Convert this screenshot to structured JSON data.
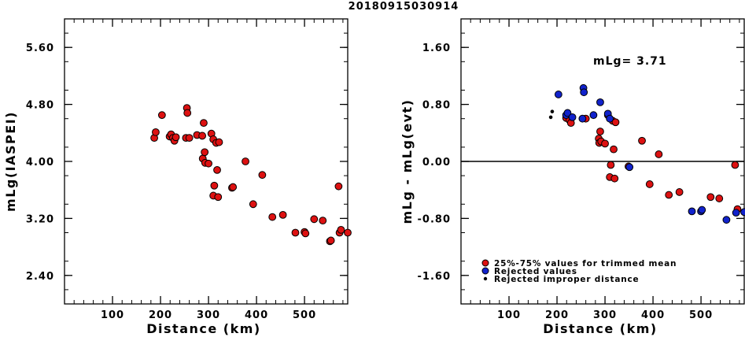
{
  "figure_title": "20180915030914",
  "colors": {
    "trimmed": "#dd1111",
    "rejected": "#1122cc",
    "improper": "#000000"
  },
  "chart_data": [
    {
      "type": "scatter",
      "title": "",
      "xlabel": "Distance (km)",
      "ylabel": "mLg(IASPEI)",
      "xlim": [
        0,
        590
      ],
      "ylim": [
        2.0,
        6.0
      ],
      "xticks": [
        100,
        200,
        300,
        400,
        500
      ],
      "yticks": [
        5.6,
        4.8,
        4.0,
        3.2,
        2.4
      ],
      "ytick_labels": [
        "5.60",
        "4.80",
        "4.00",
        "3.20",
        "2.40"
      ],
      "series": [
        {
          "category": "trimmed",
          "points": [
            [
              187,
              4.33
            ],
            [
              190,
              4.41
            ],
            [
              203,
              4.65
            ],
            [
              219,
              4.35
            ],
            [
              222,
              4.38
            ],
            [
              226,
              4.33
            ],
            [
              229,
              4.29
            ],
            [
              232,
              4.34
            ],
            [
              253,
              4.33
            ],
            [
              255,
              4.75
            ],
            [
              256,
              4.68
            ],
            [
              260,
              4.33
            ],
            [
              276,
              4.37
            ],
            [
              287,
              4.36
            ],
            [
              288,
              4.04
            ],
            [
              290,
              4.54
            ],
            [
              292,
              4.13
            ],
            [
              293,
              3.98
            ],
            [
              300,
              3.97
            ],
            [
              306,
              4.39
            ],
            [
              310,
              3.52
            ],
            [
              310,
              4.31
            ],
            [
              312,
              3.66
            ],
            [
              316,
              4.26
            ],
            [
              318,
              3.88
            ],
            [
              320,
              3.5
            ],
            [
              322,
              4.27
            ],
            [
              349,
              3.63
            ],
            [
              351,
              3.64
            ],
            [
              377,
              4.0
            ],
            [
              393,
              3.4
            ],
            [
              412,
              3.81
            ],
            [
              433,
              3.22
            ],
            [
              455,
              3.25
            ],
            [
              481,
              3.0
            ],
            [
              500,
              3.01
            ],
            [
              502,
              2.99
            ],
            [
              520,
              3.19
            ],
            [
              538,
              3.17
            ],
            [
              553,
              2.88
            ],
            [
              555,
              2.89
            ],
            [
              571,
              3.65
            ],
            [
              573,
              3.0
            ],
            [
              576,
              3.04
            ],
            [
              590,
              3.0
            ]
          ]
        }
      ]
    },
    {
      "type": "scatter",
      "title": "",
      "xlabel": "Distance (km)",
      "ylabel": "mLg - mLg(evt)",
      "annotation": "mLg= 3.71",
      "reference_line_y": 0.0,
      "xlim": [
        0,
        590
      ],
      "ylim": [
        -2.0,
        2.0
      ],
      "xticks": [
        100,
        200,
        300,
        400,
        500
      ],
      "yticks": [
        1.6,
        0.8,
        0.0,
        -0.8,
        -1.6
      ],
      "ytick_labels": [
        "1.60",
        "0.80",
        "0.00",
        "-0.80",
        "-1.60"
      ],
      "series": [
        {
          "category": "trimmed",
          "points": [
            [
              219,
              0.61
            ],
            [
              226,
              0.58
            ],
            [
              229,
              0.54
            ],
            [
              260,
              0.6
            ],
            [
              287,
              0.32
            ],
            [
              288,
              0.26
            ],
            [
              290,
              0.42
            ],
            [
              292,
              0.28
            ],
            [
              300,
              0.25
            ],
            [
              306,
              0.65
            ],
            [
              310,
              -0.22
            ],
            [
              312,
              -0.05
            ],
            [
              316,
              0.57
            ],
            [
              318,
              0.17
            ],
            [
              320,
              -0.24
            ],
            [
              322,
              0.55
            ],
            [
              349,
              -0.07
            ],
            [
              377,
              0.29
            ],
            [
              393,
              -0.32
            ],
            [
              412,
              0.1
            ],
            [
              433,
              -0.47
            ],
            [
              455,
              -0.43
            ],
            [
              520,
              -0.5
            ],
            [
              538,
              -0.52
            ],
            [
              571,
              -0.05
            ],
            [
              576,
              -0.67
            ]
          ]
        },
        {
          "category": "rejected",
          "points": [
            [
              203,
              0.94
            ],
            [
              219,
              0.65
            ],
            [
              222,
              0.68
            ],
            [
              232,
              0.62
            ],
            [
              253,
              0.6
            ],
            [
              255,
              1.03
            ],
            [
              256,
              0.97
            ],
            [
              276,
              0.65
            ],
            [
              290,
              0.83
            ],
            [
              306,
              0.67
            ],
            [
              310,
              0.6
            ],
            [
              351,
              -0.08
            ],
            [
              481,
              -0.7
            ],
            [
              500,
              -0.7
            ],
            [
              502,
              -0.68
            ],
            [
              553,
              -0.82
            ],
            [
              573,
              -0.72
            ],
            [
              590,
              -0.71
            ]
          ]
        },
        {
          "category": "improper",
          "points": [
            [
              187,
              0.62
            ],
            [
              190,
              0.7
            ]
          ]
        }
      ],
      "legend": {
        "placement": "bottom-left",
        "entries": [
          {
            "category": "trimmed",
            "label": "25%-75% values for trimmed mean"
          },
          {
            "category": "rejected",
            "label": "Rejected values"
          },
          {
            "category": "improper",
            "label": "Rejected improper distance"
          }
        ]
      }
    }
  ]
}
